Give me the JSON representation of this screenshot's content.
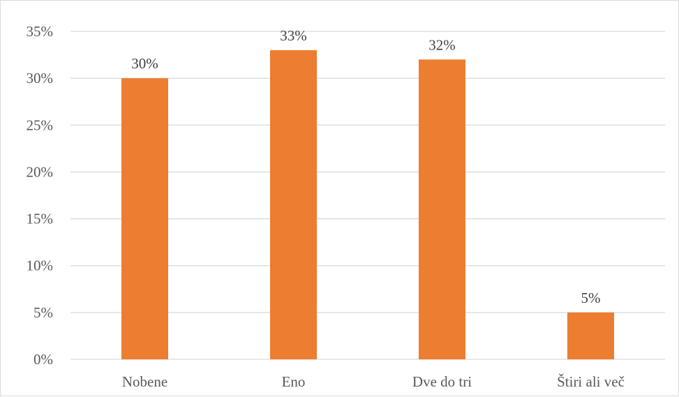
{
  "chart_data": {
    "type": "bar",
    "categories": [
      "Nobene",
      "Eno",
      "Dve do tri",
      "Štiri ali več"
    ],
    "values": [
      30,
      33,
      32,
      5
    ],
    "data_labels": [
      "30%",
      "33%",
      "32%",
      "5%"
    ],
    "yticks": [
      0,
      5,
      10,
      15,
      20,
      25,
      30,
      35
    ],
    "ytick_labels": [
      "0%",
      "5%",
      "10%",
      "15%",
      "20%",
      "25%",
      "30%",
      "35%"
    ],
    "ylim": [
      0,
      35
    ],
    "grid": true,
    "legend": "none",
    "title": "",
    "xlabel": "",
    "ylabel": "",
    "colors": {
      "bar": "#ED7D31",
      "grid": "#d9d9d9",
      "text": "#595959"
    }
  }
}
